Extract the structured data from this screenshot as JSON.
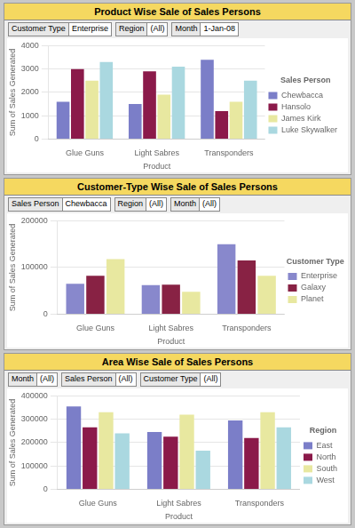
{
  "chart_data": [
    {
      "type": "bar",
      "title": "Product Wise Sale of Sales Persons",
      "filters": [
        {
          "label": "Customer Type",
          "value": "Enterprise"
        },
        {
          "label": "Region",
          "value": "(All)"
        },
        {
          "label": "Month",
          "value": "1-Jan-08"
        }
      ],
      "xlabel": "Product",
      "ylabel": "Sum of Sales Generated",
      "categories": [
        "Glue Guns",
        "Light Sabres",
        "Transponders"
      ],
      "legend_title": "Sales Person",
      "legend": "right",
      "series": [
        {
          "name": "Chewbacca",
          "color": "#7b7ec8",
          "values": [
            1600,
            1500,
            3400
          ]
        },
        {
          "name": "Hansolo",
          "color": "#8b1a4a",
          "values": [
            3000,
            2900,
            1200
          ]
        },
        {
          "name": "James Kirk",
          "color": "#e8e8a0",
          "values": [
            2500,
            1900,
            1600
          ]
        },
        {
          "name": "Luke Skywalker",
          "color": "#aad8e0",
          "values": [
            3300,
            3100,
            2500
          ]
        }
      ],
      "ylim": [
        0,
        4000
      ],
      "yticks": [
        0,
        1000,
        2000,
        3000,
        4000
      ],
      "grid": true
    },
    {
      "type": "bar",
      "title": "Customer-Type Wise Sale of Sales Persons",
      "filters": [
        {
          "label": "Sales Person",
          "value": "Chewbacca"
        },
        {
          "label": "Region",
          "value": "(All)"
        },
        {
          "label": "Month",
          "value": "(All)"
        }
      ],
      "xlabel": "Product",
      "ylabel": "Sum of Sales Generated",
      "categories": [
        "Glue Guns",
        "Light Sabres",
        "Transponders"
      ],
      "legend_title": "Customer Type",
      "legend": "right",
      "series": [
        {
          "name": "Enterprise",
          "color": "#8888cc",
          "values": [
            65000,
            62000,
            150000
          ]
        },
        {
          "name": "Galaxy",
          "color": "#882244",
          "values": [
            82000,
            63000,
            115000
          ]
        },
        {
          "name": "Planet",
          "color": "#e8e8a0",
          "values": [
            118000,
            48000,
            82000
          ]
        }
      ],
      "ylim": [
        0,
        200000
      ],
      "yticks": [
        0,
        100000,
        200000
      ],
      "grid": true
    },
    {
      "type": "bar",
      "title": "Area Wise Sale of Sales Persons",
      "filters": [
        {
          "label": "Month",
          "value": "(All)"
        },
        {
          "label": "Sales Person",
          "value": "(All)"
        },
        {
          "label": "Customer Type",
          "value": "(All)"
        }
      ],
      "xlabel": "Product",
      "ylabel": "Sum of Sales Generated",
      "categories": [
        "Glue Guns",
        "Light Sabres",
        "Transponders"
      ],
      "legend_title": "Region",
      "legend": "right",
      "series": [
        {
          "name": "East",
          "color": "#7b7ec8",
          "values": [
            355000,
            245000,
            295000
          ]
        },
        {
          "name": "North",
          "color": "#8b1a4a",
          "values": [
            265000,
            225000,
            220000
          ]
        },
        {
          "name": "South",
          "color": "#e8e8a0",
          "values": [
            330000,
            320000,
            330000
          ]
        },
        {
          "name": "West",
          "color": "#aad8e0",
          "values": [
            240000,
            165000,
            265000
          ]
        }
      ],
      "ylim": [
        0,
        400000
      ],
      "yticks": [
        0,
        100000,
        200000,
        300000,
        400000
      ],
      "grid": true
    }
  ]
}
